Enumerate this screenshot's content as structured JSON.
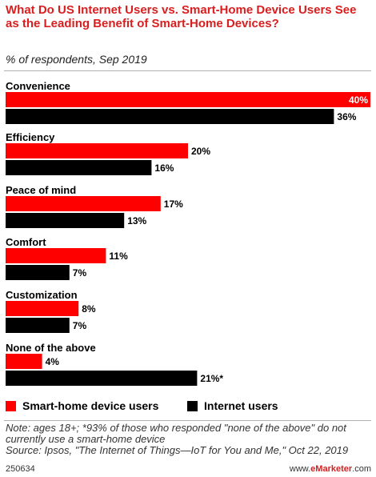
{
  "header": {
    "title": "What Do US Internet Users vs. Smart-Home Device Users See as the Leading Benefit of Smart-Home Devices?",
    "subtitle": "% of respondents, Sep 2019"
  },
  "chart_data": {
    "type": "bar",
    "orientation": "horizontal",
    "categories": [
      "Convenience",
      "Efficiency",
      "Peace of mind",
      "Comfort",
      "Customization",
      "None of the above"
    ],
    "series": [
      {
        "name": "Smart-home device users",
        "color": "#ff0000",
        "values": [
          40,
          20,
          17,
          11,
          8,
          4
        ],
        "labels": [
          "40%",
          "20%",
          "17%",
          "11%",
          "8%",
          "4%"
        ]
      },
      {
        "name": "Internet users",
        "color": "#000000",
        "values": [
          36,
          16,
          13,
          7,
          7,
          21
        ],
        "labels": [
          "36%",
          "16%",
          "13%",
          "7%",
          "7%",
          "21%*"
        ]
      }
    ],
    "xlim": [
      0,
      40
    ],
    "grid": false,
    "legend_position": "bottom"
  },
  "legend": {
    "items": [
      {
        "label": "Smart-home device users",
        "color": "#ff0000"
      },
      {
        "label": "Internet users",
        "color": "#000000"
      }
    ]
  },
  "footer": {
    "note": "Note: ages 18+; *93% of those who responded \"none of the above\" do not currently use a smart-home device",
    "source": "Source: Ipsos, \"The Internet of Things—IoT for You and Me,\" Oct 22, 2019",
    "id": "250634",
    "brand_prefix": "www.",
    "brand_name": "eMarketer",
    "brand_suffix": ".com"
  }
}
